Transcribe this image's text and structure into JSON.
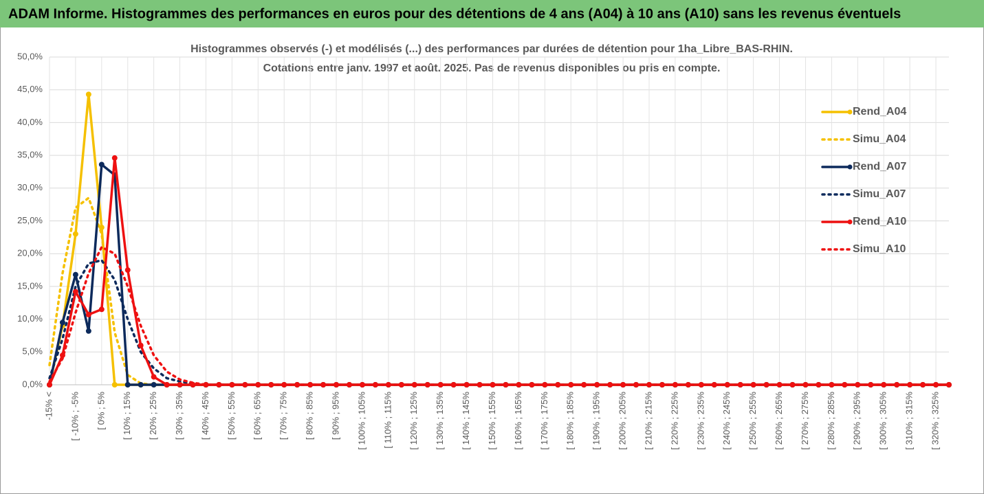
{
  "header": {
    "title": "ADAM Informe. Histogrammes des performances en euros pour des détentions de 4 ans (A04) à 10 ans (A10) sans les revenus éventuels"
  },
  "chart_data": {
    "type": "line",
    "title": "Histogrammes observés (-) et modélisés (...) des performances par durées de détention pour 1ha_Libre_BAS-RHIN.",
    "subtitle": "Cotations entre janv. 1997 et août. 2025. Pas de revenus disponibles ou pris en compte.",
    "categories": [
      "-15% <",
      null,
      "[ -10% ; -5%",
      null,
      "[ 0% ; 5%",
      null,
      "[ 10% ; 15%",
      null,
      "[ 20% ; 25%",
      null,
      "[ 30% ; 35%",
      null,
      "[ 40% ; 45%",
      null,
      "[ 50% ; 55%",
      null,
      "[ 60% ; 65%",
      null,
      "[ 70% ; 75%",
      null,
      "[ 80% ; 85%",
      null,
      "[ 90% ; 95%",
      null,
      "[ 100% ; 105%",
      null,
      "[ 110% ; 115%",
      null,
      "[ 120% ; 125%",
      null,
      "[ 130% ; 135%",
      null,
      "[ 140% ; 145%",
      null,
      "[ 150% ; 155%",
      null,
      "[ 160% ; 165%",
      null,
      "[ 170% ; 175%",
      null,
      "[ 180% ; 185%",
      null,
      "[ 190% ; 195%",
      null,
      "[ 200% ; 205%",
      null,
      "[ 210% ; 215%",
      null,
      "[ 220% ; 225%",
      null,
      "[ 230% ; 235%",
      null,
      "[ 240% ; 245%",
      null,
      "[ 250% ; 255%",
      null,
      "[ 260% ; 265%",
      null,
      "[ 270% ; 275%",
      null,
      "[ 280% ; 285%",
      null,
      "[ 290% ; 295%",
      null,
      "[ 300% ; 305%",
      null,
      "[ 310% ; 315%",
      null,
      "[ 320% ; 325%",
      null
    ],
    "series": [
      {
        "name": "Rend_A04",
        "color": "#f5c000",
        "line_style": "solid",
        "values": [
          0,
          9,
          23,
          44.3,
          24,
          0,
          0,
          0,
          0,
          0,
          0,
          0,
          0,
          0,
          0,
          0,
          0,
          0,
          0,
          0,
          0,
          0,
          0,
          0,
          0,
          0,
          0,
          0,
          0,
          0,
          0,
          0,
          0,
          0,
          0,
          0,
          0,
          0,
          0,
          0,
          0,
          0,
          0,
          0,
          0,
          0,
          0,
          0,
          0,
          0,
          0,
          0,
          0,
          0,
          0,
          0,
          0,
          0,
          0,
          0,
          0,
          0,
          0,
          0,
          0,
          0,
          0,
          0,
          0,
          0
        ]
      },
      {
        "name": "Simu_A04",
        "color": "#f5c000",
        "line_style": "dotted",
        "values": [
          3,
          17,
          27,
          28.5,
          23,
          8,
          1.5,
          0.2,
          0,
          0,
          0,
          0,
          0,
          0,
          0,
          0,
          0,
          0,
          0,
          0,
          0,
          0,
          0,
          0,
          0,
          0,
          0,
          0,
          0,
          0,
          0,
          0,
          0,
          0,
          0,
          0,
          0,
          0,
          0,
          0,
          0,
          0,
          0,
          0,
          0,
          0,
          0,
          0,
          0,
          0,
          0,
          0,
          0,
          0,
          0,
          0,
          0,
          0,
          0,
          0,
          0,
          0,
          0,
          0,
          0,
          0,
          0,
          0,
          0,
          0
        ]
      },
      {
        "name": "Rend_A07",
        "color": "#0d2a5c",
        "line_style": "solid",
        "values": [
          0,
          9.5,
          16.8,
          8.2,
          33.6,
          32,
          0,
          0,
          0,
          0,
          0,
          0,
          0,
          0,
          0,
          0,
          0,
          0,
          0,
          0,
          0,
          0,
          0,
          0,
          0,
          0,
          0,
          0,
          0,
          0,
          0,
          0,
          0,
          0,
          0,
          0,
          0,
          0,
          0,
          0,
          0,
          0,
          0,
          0,
          0,
          0,
          0,
          0,
          0,
          0,
          0,
          0,
          0,
          0,
          0,
          0,
          0,
          0,
          0,
          0,
          0,
          0,
          0,
          0,
          0,
          0,
          0,
          0,
          0,
          0
        ]
      },
      {
        "name": "Simu_A07",
        "color": "#0d2a5c",
        "line_style": "dotted",
        "values": [
          1,
          7,
          15,
          18.5,
          19,
          16,
          10,
          5,
          2.5,
          1,
          0.5,
          0.2,
          0,
          0,
          0,
          0,
          0,
          0,
          0,
          0,
          0,
          0,
          0,
          0,
          0,
          0,
          0,
          0,
          0,
          0,
          0,
          0,
          0,
          0,
          0,
          0,
          0,
          0,
          0,
          0,
          0,
          0,
          0,
          0,
          0,
          0,
          0,
          0,
          0,
          0,
          0,
          0,
          0,
          0,
          0,
          0,
          0,
          0,
          0,
          0,
          0,
          0,
          0,
          0,
          0,
          0,
          0,
          0,
          0,
          0
        ]
      },
      {
        "name": "Rend_A10",
        "color": "#ee1111",
        "line_style": "solid",
        "values": [
          0,
          4.5,
          14.2,
          10.7,
          11.5,
          34.6,
          17.5,
          6,
          1.2,
          0,
          0,
          0,
          0,
          0,
          0,
          0,
          0,
          0,
          0,
          0,
          0,
          0,
          0,
          0,
          0,
          0,
          0,
          0,
          0,
          0,
          0,
          0,
          0,
          0,
          0,
          0,
          0,
          0,
          0,
          0,
          0,
          0,
          0,
          0,
          0,
          0,
          0,
          0,
          0,
          0,
          0,
          0,
          0,
          0,
          0,
          0,
          0,
          0,
          0,
          0,
          0,
          0,
          0,
          0,
          0,
          0,
          0,
          0,
          0,
          0
        ]
      },
      {
        "name": "Simu_A10",
        "color": "#ee1111",
        "line_style": "dotted",
        "values": [
          0.5,
          4,
          11,
          17,
          21,
          20,
          15,
          9,
          4.5,
          2,
          0.8,
          0.3,
          0,
          0,
          0,
          0,
          0,
          0,
          0,
          0,
          0,
          0,
          0,
          0,
          0,
          0,
          0,
          0,
          0,
          0,
          0,
          0,
          0,
          0,
          0,
          0,
          0,
          0,
          0,
          0,
          0,
          0,
          0,
          0,
          0,
          0,
          0,
          0,
          0,
          0,
          0,
          0,
          0,
          0,
          0,
          0,
          0,
          0,
          0,
          0,
          0,
          0,
          0,
          0,
          0,
          0,
          0,
          0,
          0,
          0
        ]
      }
    ],
    "ylim": [
      0,
      50
    ],
    "yticks": [
      {
        "value": 0,
        "label": "0,0%"
      },
      {
        "value": 5,
        "label": "5,0%"
      },
      {
        "value": 10,
        "label": "10,0%"
      },
      {
        "value": 15,
        "label": "15,0%"
      },
      {
        "value": 20,
        "label": "20,0%"
      },
      {
        "value": 25,
        "label": "25,0%"
      },
      {
        "value": 30,
        "label": "30,0%"
      },
      {
        "value": 35,
        "label": "35,0%"
      },
      {
        "value": 40,
        "label": "40,0%"
      },
      {
        "value": 45,
        "label": "45,0%"
      },
      {
        "value": 50,
        "label": "50,0%"
      }
    ],
    "grid": true,
    "legend": "right"
  }
}
